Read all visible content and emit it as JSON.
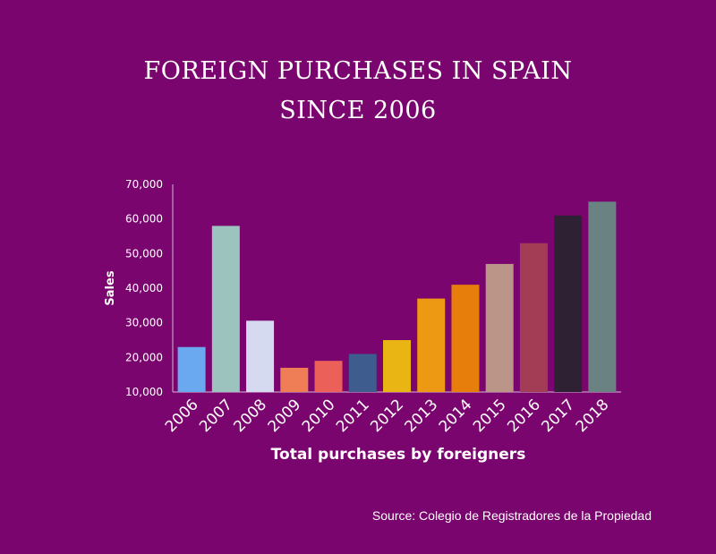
{
  "chart_data": {
    "type": "bar",
    "title": [
      "FOREIGN PURCHASES IN SPAIN",
      "SINCE 2006"
    ],
    "xlabel": "Total purchases by foreigners",
    "ylabel": "Sales",
    "ylim": [
      10000,
      70000
    ],
    "yticks": [
      "70,000",
      "60,000",
      "50,000",
      "40,000",
      "30,000",
      "20,000",
      "10,000"
    ],
    "ytick_values": [
      70000,
      60000,
      50000,
      40000,
      30000,
      20000,
      10000
    ],
    "categories": [
      "2006",
      "2007",
      "2008",
      "2009",
      "2010",
      "2011",
      "2012",
      "2013",
      "2014",
      "2015",
      "2016",
      "2017",
      "2018"
    ],
    "values": [
      23000,
      58000,
      30600,
      17000,
      19000,
      21000,
      25000,
      37000,
      41000,
      47000,
      53000,
      61000,
      65000
    ],
    "bar_colors": [
      "#6aa9ef",
      "#9cc3be",
      "#d6daf0",
      "#ef7d55",
      "#ec605a",
      "#3f5c8e",
      "#e9b514",
      "#ee9914",
      "#e77e0c",
      "#bc9589",
      "#a23d55",
      "#2e2134",
      "#6b8282"
    ],
    "grid": false,
    "legend": "none",
    "source": "Source: Colegio de Registradores de la Propiedad"
  }
}
